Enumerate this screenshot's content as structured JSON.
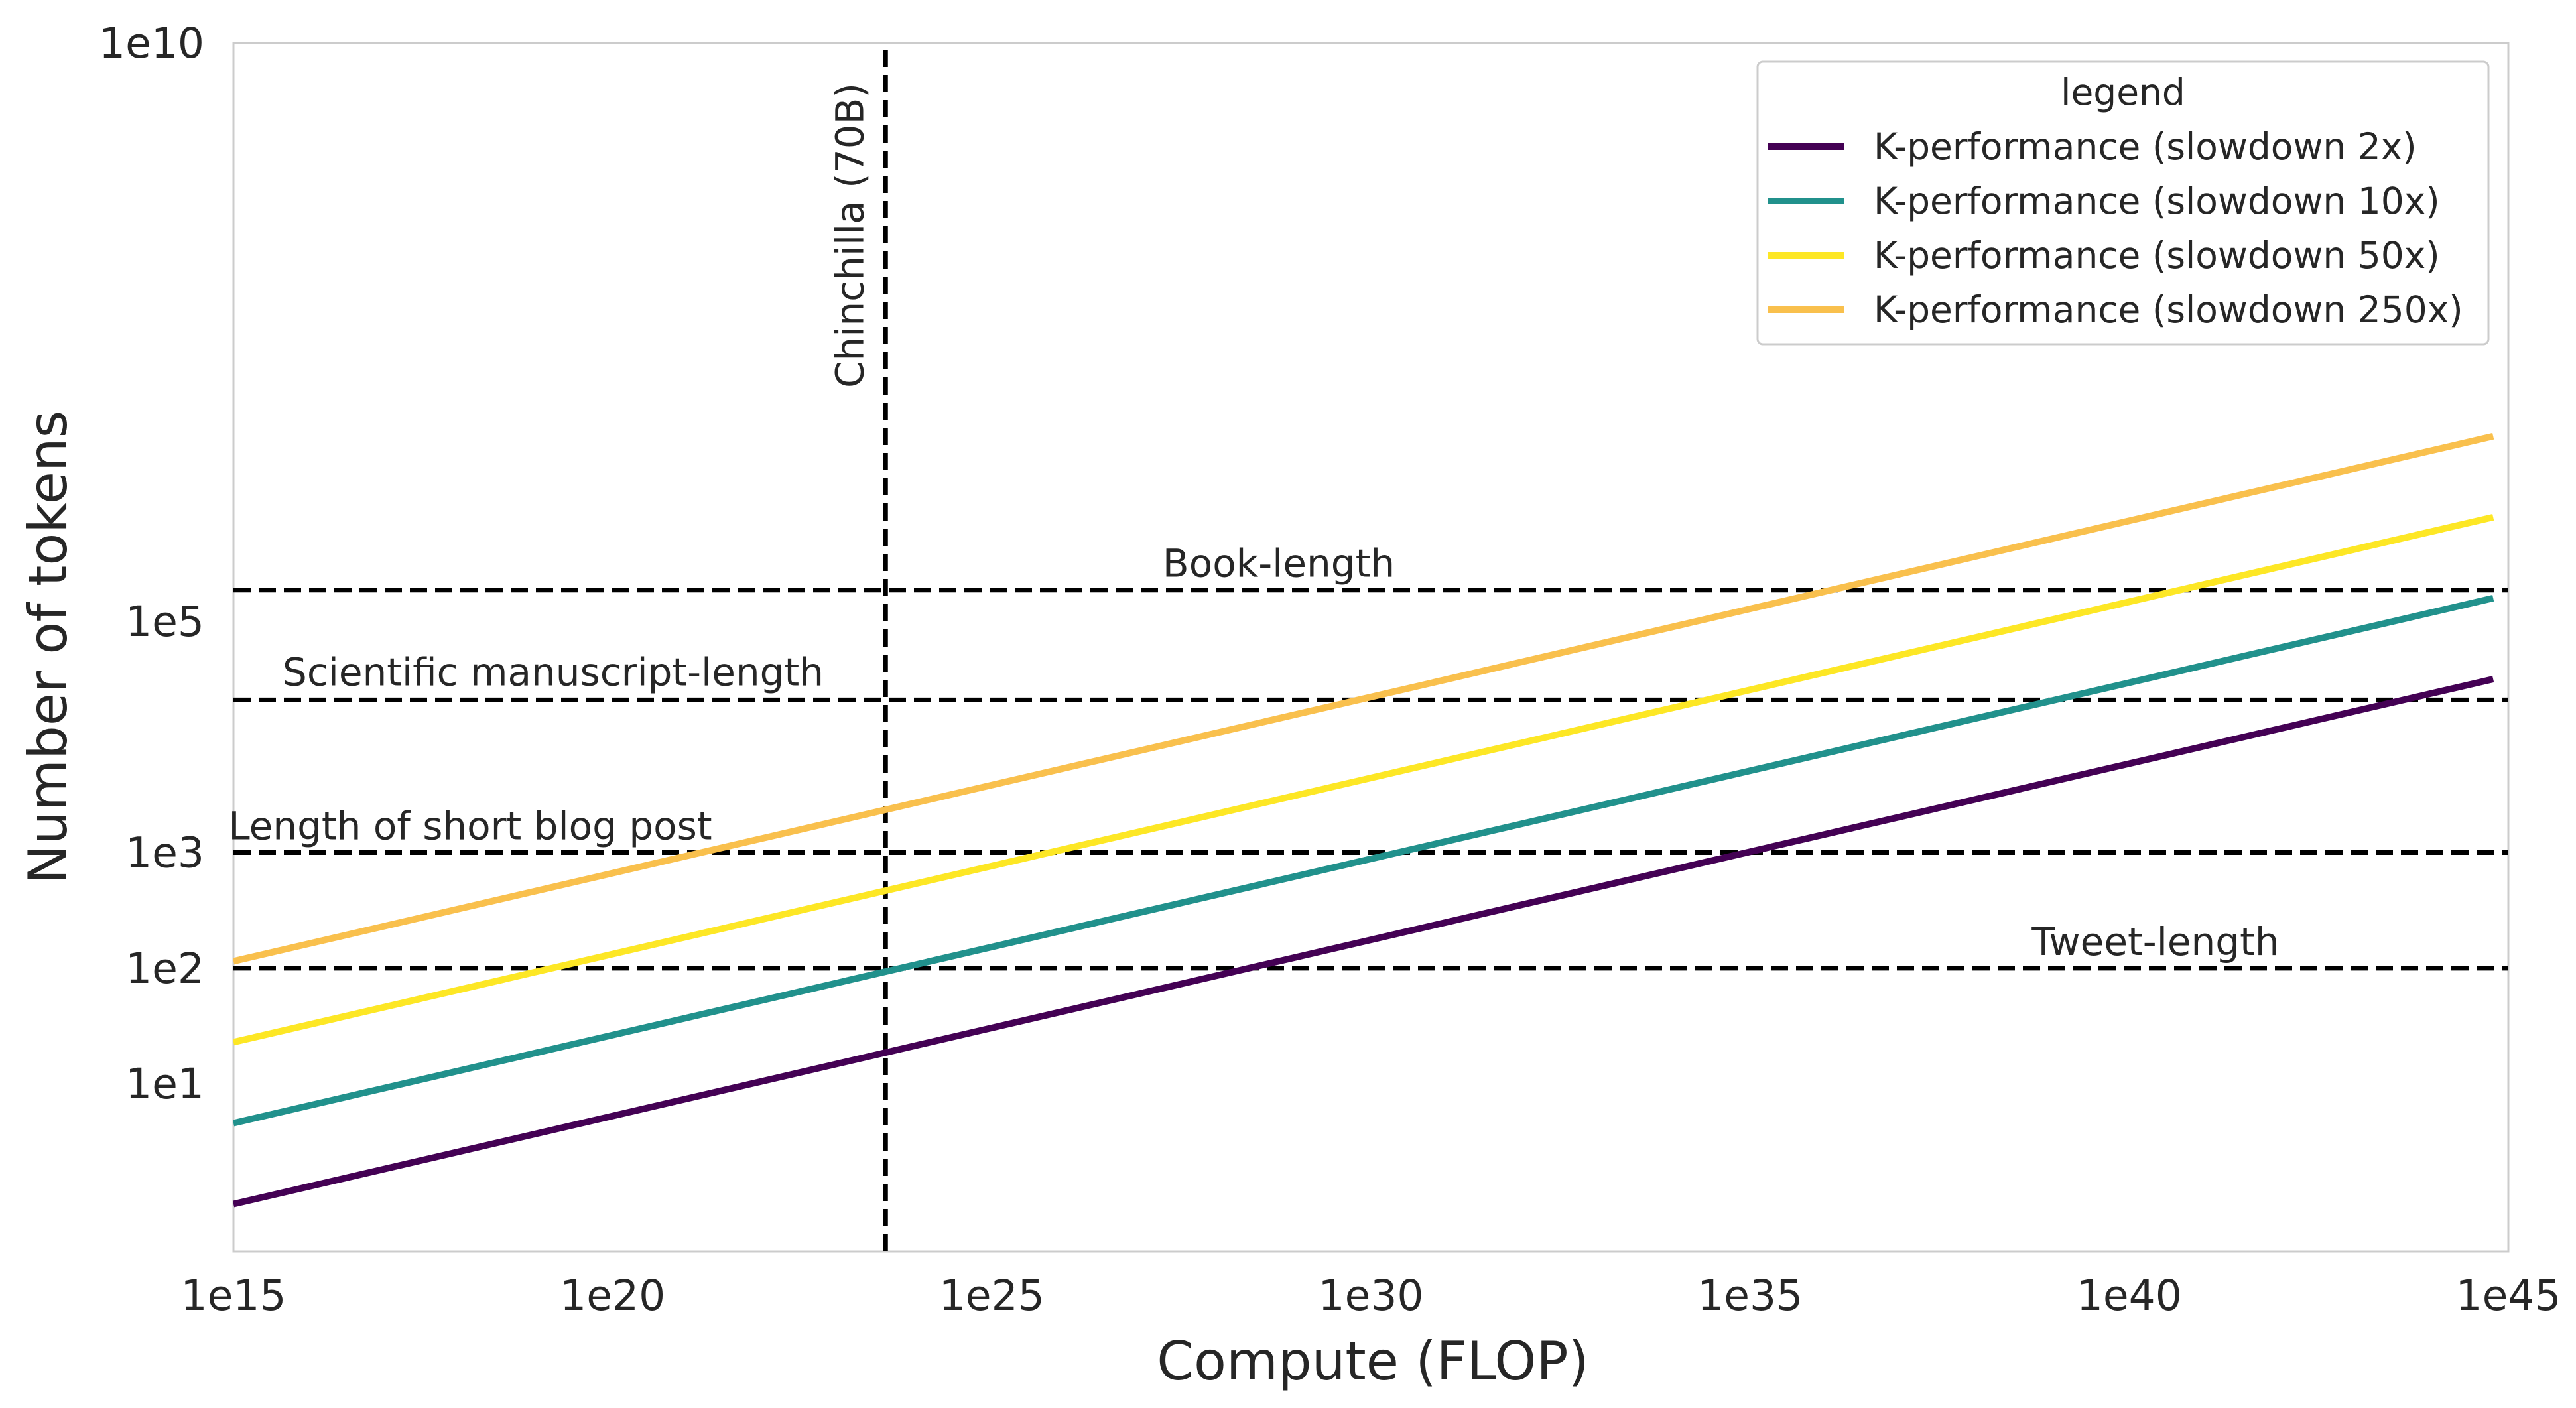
{
  "chart_data": {
    "type": "line",
    "xlabel": "Compute (FLOP)",
    "ylabel": "Number of tokens",
    "x_scale": "log",
    "y_scale": "log",
    "xlim_exp": [
      15,
      45
    ],
    "ylim_exp": [
      -0.45,
      10
    ],
    "x_ticks": [
      {
        "exp": 15,
        "label": "1e15"
      },
      {
        "exp": 20,
        "label": "1e20"
      },
      {
        "exp": 25,
        "label": "1e25"
      },
      {
        "exp": 30,
        "label": "1e30"
      },
      {
        "exp": 35,
        "label": "1e35"
      },
      {
        "exp": 40,
        "label": "1e40"
      },
      {
        "exp": 45,
        "label": "1e45"
      }
    ],
    "y_ticks": [
      {
        "exp": 1,
        "label": "1e1"
      },
      {
        "exp": 2,
        "label": "1e2"
      },
      {
        "exp": 3,
        "label": "1e3"
      },
      {
        "exp": 5,
        "label": "1e5"
      },
      {
        "exp": 10,
        "label": "1e10"
      }
    ],
    "legend": {
      "title": "legend",
      "position": "top-right"
    },
    "series": [
      {
        "name": "K-performance (slowdown 2x)",
        "color": "#440154",
        "x_exp": [
          15,
          44.8
        ],
        "y_exp": [
          -0.04,
          4.5
        ]
      },
      {
        "name": "K-performance (slowdown 10x)",
        "color": "#21918c",
        "x_exp": [
          15,
          44.8
        ],
        "y_exp": [
          0.66,
          5.2
        ]
      },
      {
        "name": "K-performance (slowdown 50x)",
        "color": "#fde725",
        "x_exp": [
          15,
          44.8
        ],
        "y_exp": [
          1.36,
          5.9
        ]
      },
      {
        "name": "K-performance (slowdown 250x)",
        "color": "#f9c04d",
        "x_exp": [
          15,
          44.8
        ],
        "y_exp": [
          2.06,
          6.6
        ]
      }
    ],
    "reference_lines": [
      {
        "orientation": "vertical",
        "x_exp": 23.6,
        "label": "Chinchilla (70B)"
      },
      {
        "orientation": "horizontal",
        "y_exp": 5.27,
        "label": "Book-length"
      },
      {
        "orientation": "horizontal",
        "y_exp": 4.32,
        "label": "Scientific manuscript-length"
      },
      {
        "orientation": "horizontal",
        "y_exp": 3.0,
        "label": "Length of short blog post"
      },
      {
        "orientation": "horizontal",
        "y_exp": 2.0,
        "label": "Tweet-length"
      }
    ]
  }
}
